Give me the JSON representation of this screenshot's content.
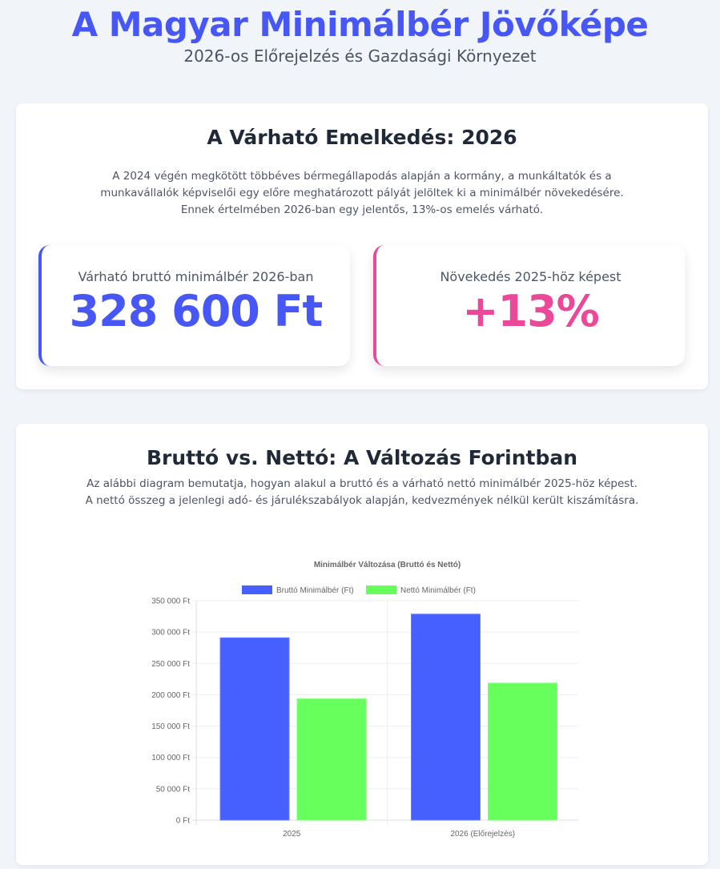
{
  "header": {
    "title": "A Magyar Minimálbér Jövőképe",
    "subtitle": "2026-os Előrejelzés és Gazdasági Környezet"
  },
  "section1": {
    "title": "A Várható Emelkedés: 2026",
    "description": "A 2024 végén megkötött többéves bérmegállapodás alapján a kormány, a munkáltatók és a munkavállalók képviselői egy előre meghatározott pályát jelöltek ki a minimálbér növekedésére. Ennek értelmében 2026-ban egy jelentős, 13%-os emelés várható.",
    "stats": [
      {
        "label": "Várható bruttó minimálbér 2026-ban",
        "value": "328 600 Ft",
        "color": "#4757f5"
      },
      {
        "label": "Növekedés 2025-höz képest",
        "value": "+13%",
        "color": "#ec4899"
      }
    ]
  },
  "section2": {
    "title": "Bruttó vs. Nettó: A Változás Forintban",
    "description": "Az alábbi diagram bemutatja, hogyan alakul a bruttó és a várható nettó minimálbér 2025-höz képest. A nettó összeg a jelenlegi adó- és járulékszabályok alapján, kedvezmények nélkül került kiszámításra."
  },
  "chart_data": {
    "type": "bar",
    "title": "Minimálbér Változása (Bruttó és Nettó)",
    "categories": [
      "2025",
      "2026 (Előrejelzés)"
    ],
    "series": [
      {
        "name": "Bruttó Minimálbér (Ft)",
        "values": [
          290800,
          328600
        ],
        "color": "#4560ff"
      },
      {
        "name": "Nettó Minimálbér (Ft)",
        "values": [
          193382,
          218519
        ],
        "color": "#66ff5c"
      }
    ],
    "ylim": [
      0,
      350000
    ],
    "yticks": [
      "0 Ft",
      "50 000 Ft",
      "100 000 Ft",
      "150 000 Ft",
      "200 000 Ft",
      "250 000 Ft",
      "300 000 Ft",
      "350 000 Ft"
    ],
    "legend": "top",
    "grid": true
  }
}
